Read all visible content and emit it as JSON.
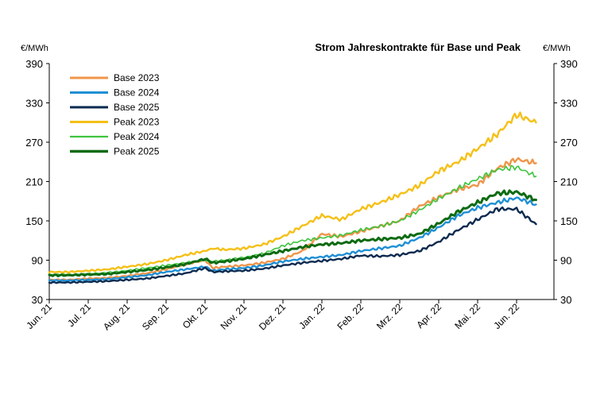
{
  "chart_data": {
    "type": "line",
    "title": "Strom Jahreskontrakte für Base und Peak",
    "ylabel_left": "€/MWh",
    "ylabel_right": "€/MWh",
    "ylim": [
      30,
      390
    ],
    "yticks": [
      30,
      90,
      150,
      210,
      270,
      330,
      390
    ],
    "x_ticks": [
      "Jun. 21",
      "Jul. 21",
      "Aug. 21",
      "Sep. 21",
      "Okt. 21",
      "Nov. 21",
      "Dez. 21",
      "Jan. 22",
      "Feb. 22",
      "Mrz. 22",
      "Apr. 22",
      "Mai. 22",
      "Jun. 22"
    ],
    "legend_position": "top-left",
    "grid": false,
    "x_index": [
      0,
      0.5,
      1,
      1.5,
      2,
      2.5,
      3,
      3.5,
      4,
      4.2,
      4.5,
      5,
      5.5,
      6,
      6.5,
      7,
      7.5,
      8,
      8.5,
      9,
      9.5,
      10,
      10.5,
      11,
      11.5,
      12,
      12.5
    ],
    "series": [
      {
        "name": "Base 2023",
        "color": "#f0954a",
        "width": 2.4,
        "values": [
          60,
          60,
          62,
          63,
          66,
          70,
          76,
          84,
          90,
          78,
          80,
          82,
          86,
          92,
          104,
          130,
          126,
          134,
          142,
          150,
          172,
          186,
          198,
          205,
          230,
          244,
          238
        ]
      },
      {
        "name": "Base 2024",
        "color": "#1f8fd4",
        "width": 2.4,
        "values": [
          59,
          59,
          60,
          61,
          64,
          67,
          72,
          76,
          80,
          74,
          76,
          78,
          82,
          88,
          92,
          95,
          98,
          104,
          108,
          112,
          124,
          140,
          158,
          170,
          178,
          185,
          175
        ]
      },
      {
        "name": "Base 2025",
        "color": "#0b2a4f",
        "width": 2.4,
        "values": [
          56,
          56,
          57,
          58,
          60,
          62,
          66,
          70,
          78,
          72,
          73,
          74,
          77,
          82,
          86,
          89,
          92,
          97,
          96,
          98,
          104,
          118,
          136,
          152,
          168,
          168,
          145
        ]
      },
      {
        "name": "Peak 2023",
        "color": "#f5c016",
        "width": 2.4,
        "values": [
          72,
          72,
          74,
          76,
          80,
          84,
          90,
          98,
          104,
          108,
          106,
          108,
          114,
          126,
          142,
          158,
          152,
          168,
          178,
          190,
          204,
          226,
          240,
          260,
          282,
          312,
          300
        ]
      },
      {
        "name": "Peak 2024",
        "color": "#3ec43e",
        "width": 1.6,
        "values": [
          68,
          68,
          69,
          71,
          74,
          78,
          82,
          86,
          90,
          88,
          90,
          94,
          100,
          112,
          120,
          124,
          128,
          136,
          142,
          150,
          166,
          184,
          200,
          214,
          228,
          232,
          218
        ]
      },
      {
        "name": "Peak 2025",
        "color": "#0d6b12",
        "width": 3,
        "values": [
          67,
          67,
          68,
          69,
          72,
          75,
          79,
          84,
          92,
          86,
          88,
          92,
          98,
          104,
          110,
          114,
          116,
          120,
          122,
          124,
          130,
          146,
          164,
          178,
          192,
          194,
          182
        ]
      }
    ]
  }
}
